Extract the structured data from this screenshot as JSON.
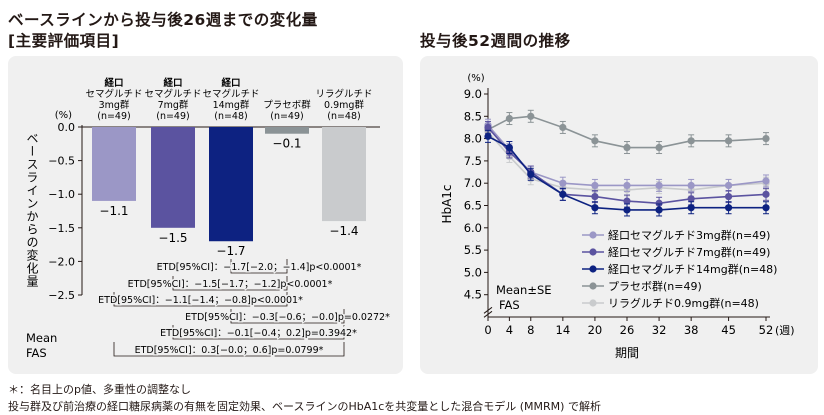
{
  "left_title_line1": "ベースラインから投与後26週までの変化量",
  "left_title_line2": "[主要評価項目]",
  "right_title": "投与後52週間の推移",
  "footnote_1": "＊：名目上のp値、多重性の調整なし",
  "footnote_2": "投与群及び前治療の経口糖尿病薬の有無を固定効果、ベースラインのHbA1cを共変量とした混合モデル (MMRM) で解析",
  "chart_data": [
    {
      "type": "bar",
      "ylabel": "ベースラインからの変化量",
      "yunit": "(%)",
      "ylim": [
        -2.5,
        0
      ],
      "yticks": [
        "0.0",
        "-0.5",
        "-1.0",
        "-1.5",
        "-2.0",
        "-2.5"
      ],
      "stat_note": [
        "Mean",
        "FAS"
      ],
      "categories": [
        [
          "経口",
          "セマグルチド",
          "3mg群",
          "(n=49)"
        ],
        [
          "経口",
          "セマグルチド",
          "7mg群",
          "(n=49)"
        ],
        [
          "経口",
          "セマグルチド",
          "14mg群",
          "(n=48)"
        ],
        [
          "プラセボ群",
          "(n=49)"
        ],
        [
          "リラグルチド",
          "0.9mg群",
          "(n=48)"
        ]
      ],
      "values": [
        -1.1,
        -1.5,
        -1.7,
        -0.1,
        -1.4
      ],
      "value_labels": [
        "−1.1",
        "−1.5",
        "−1.7",
        "−0.1",
        "−1.4"
      ],
      "colors": [
        "#9b97c6",
        "#5b53a0",
        "#0d2281",
        "#8b9396",
        "#c9cbcd"
      ],
      "comparisons": [
        "ETD[95%CI]：−1.7[−2.0；−1.4]p<0.0001*",
        "ETD[95%CI]：−1.5[−1.7；−1.2]p<0.0001*",
        "ETD[95%CI]：−1.1[−1.4；−0.8]p<0.0001*",
        "ETD[95%CI]：−0.3[−0.6；−0.0]p=0.0272*",
        "ETD[95%CI]：−0.1[−0.4；0.2]p=0.3942*",
        "ETD[95%CI]：0.3[−0.0；0.6]p=0.0799*"
      ]
    },
    {
      "type": "line",
      "ylabel": "HbA1c",
      "yunit": "(%)",
      "xlabel": "期間",
      "xunit": "(週)",
      "x": [
        0,
        4,
        8,
        14,
        20,
        26,
        32,
        38,
        45,
        52
      ],
      "xticks": [
        "0",
        "4",
        "8",
        "14",
        "20",
        "26",
        "32",
        "38",
        "45",
        "52"
      ],
      "ylim": [
        4.0,
        9.0
      ],
      "yticks": [
        "9.0",
        "8.5",
        "8.0",
        "7.5",
        "7.0",
        "6.5",
        "6.0",
        "5.5",
        "5.0",
        "4.5"
      ],
      "stat_note": [
        "Mean±SE",
        "FAS"
      ],
      "series": [
        {
          "name": "経口セマグルチド3mg群(n=49)",
          "color": "#9b97c6",
          "values": [
            8.3,
            7.75,
            7.25,
            7.0,
            6.95,
            6.95,
            6.95,
            6.95,
            6.95,
            7.05
          ]
        },
        {
          "name": "経口セマグルチド7mg群(n=49)",
          "color": "#5b53a0",
          "values": [
            8.25,
            7.7,
            7.25,
            6.75,
            6.7,
            6.6,
            6.55,
            6.65,
            6.7,
            6.75
          ]
        },
        {
          "name": "経口セマグルチド14mg群(n=48)",
          "color": "#0d2281",
          "values": [
            8.05,
            7.8,
            7.2,
            6.75,
            6.45,
            6.4,
            6.4,
            6.45,
            6.45,
            6.45
          ]
        },
        {
          "name": "プラセボ群(n=49)",
          "color": "#8b9396",
          "values": [
            8.2,
            8.45,
            8.5,
            8.25,
            7.95,
            7.8,
            7.8,
            7.95,
            7.95,
            8.0
          ]
        },
        {
          "name": "リラグルチド0.9mg群(n=48)",
          "color": "#c9cbcd",
          "values": [
            8.15,
            7.6,
            7.1,
            6.9,
            6.85,
            6.85,
            6.9,
            6.85,
            6.95,
            7.0
          ]
        }
      ]
    }
  ]
}
